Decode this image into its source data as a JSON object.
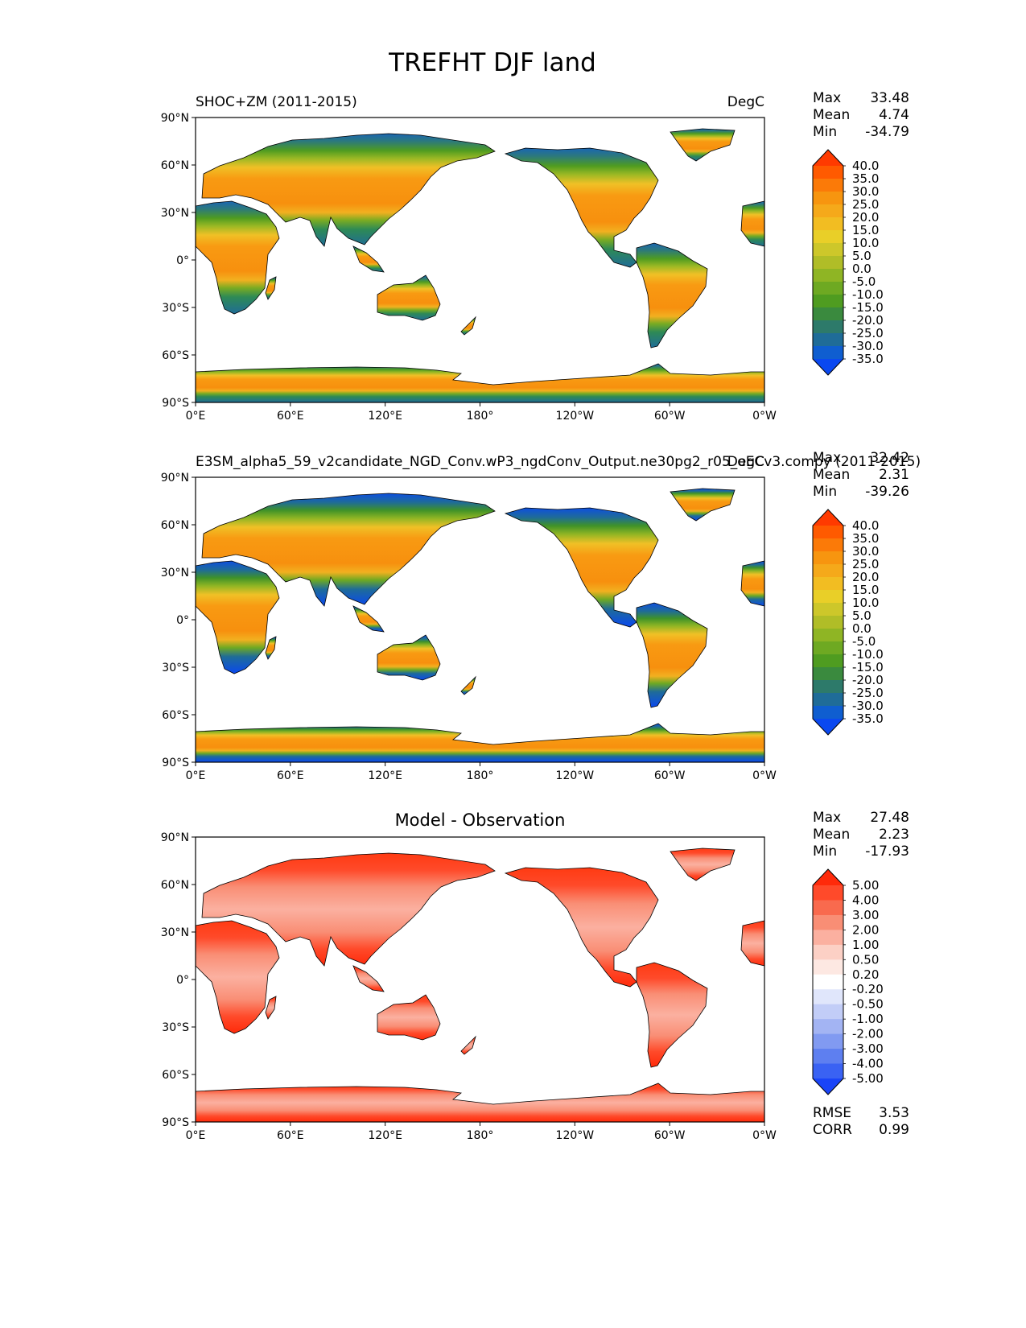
{
  "title": "TREFHT DJF land",
  "axes": {
    "lat_labels": [
      "90°N",
      "60°N",
      "30°N",
      "0°",
      "30°S",
      "60°S",
      "90°S"
    ],
    "lon_labels": [
      "0°E",
      "60°E",
      "120°E",
      "180°",
      "120°W",
      "60°W",
      "0°W"
    ]
  },
  "panels": [
    {
      "left_title": "SHOC+ZM (2011-2015)",
      "center_title": "",
      "right_title": "DegC",
      "stats": [
        {
          "label": "Max",
          "value": "33.48"
        },
        {
          "label": "Mean",
          "value": "4.74"
        },
        {
          "label": "Min",
          "value": "-34.79"
        }
      ],
      "colorbar": {
        "labels": [
          "40.0",
          "35.0",
          "30.0",
          "25.0",
          "20.0",
          "15.0",
          "10.0",
          "5.0",
          "0.0",
          "-5.0",
          "-10.0",
          "-15.0",
          "-20.0",
          "-25.0",
          "-30.0",
          "-35.0"
        ],
        "colors": [
          "#ff3a00",
          "#ff5a00",
          "#fb7a08",
          "#f7950f",
          "#f5a91a",
          "#f2bd22",
          "#e9cf28",
          "#cdc72a",
          "#b0bd27",
          "#8fb524",
          "#6ea922",
          "#4f9c20",
          "#3a8a3e",
          "#2d7a6a",
          "#1f6c98",
          "#0f5ed0",
          "#0a48f0"
        ]
      }
    },
    {
      "left_title": "E3SM_alpha5_59_v2candidate_NGD_Conv.wP3_ngdConv_Output.ne30pg2_r05_oECv3.compy (2011-2015)",
      "center_title": "",
      "right_title": "DegC",
      "stats": [
        {
          "label": "Max",
          "value": "32.42"
        },
        {
          "label": "Mean",
          "value": "2.31"
        },
        {
          "label": "Min",
          "value": "-39.26"
        }
      ],
      "colorbar": {
        "labels": [
          "40.0",
          "35.0",
          "30.0",
          "25.0",
          "20.0",
          "15.0",
          "10.0",
          "5.0",
          "0.0",
          "-5.0",
          "-10.0",
          "-15.0",
          "-20.0",
          "-25.0",
          "-30.0",
          "-35.0"
        ],
        "colors": [
          "#ff3a00",
          "#ff5a00",
          "#fb7a08",
          "#f7950f",
          "#f5a91a",
          "#f2bd22",
          "#e9cf28",
          "#cdc72a",
          "#b0bd27",
          "#8fb524",
          "#6ea922",
          "#4f9c20",
          "#3a8a3e",
          "#2d7a6a",
          "#1f6c98",
          "#0f5ed0",
          "#0a48f0"
        ]
      }
    },
    {
      "left_title": "",
      "center_title": "Model - Observation",
      "right_title": "",
      "stats": [
        {
          "label": "Max",
          "value": "27.48"
        },
        {
          "label": "Mean",
          "value": "2.23"
        },
        {
          "label": "Min",
          "value": "-17.93"
        }
      ],
      "extra_stats": [
        {
          "label": "RMSE",
          "value": "3.53"
        },
        {
          "label": "CORR",
          "value": "0.99"
        }
      ],
      "colorbar": {
        "labels": [
          "5.00",
          "4.00",
          "3.00",
          "2.00",
          "1.00",
          "0.50",
          "0.20",
          "-0.20",
          "-0.50",
          "-1.00",
          "-2.00",
          "-3.00",
          "-4.00",
          "-5.00"
        ],
        "colors": [
          "#ff2a0a",
          "#ff4a2a",
          "#f96a4e",
          "#f98e75",
          "#fbb0a0",
          "#fcd0c5",
          "#fde8e2",
          "#ffffff",
          "#e0e6fb",
          "#c2cdf7",
          "#a3b4f3",
          "#819af1",
          "#5e7ff0",
          "#3a62f3",
          "#1a44f8"
        ]
      }
    }
  ]
}
